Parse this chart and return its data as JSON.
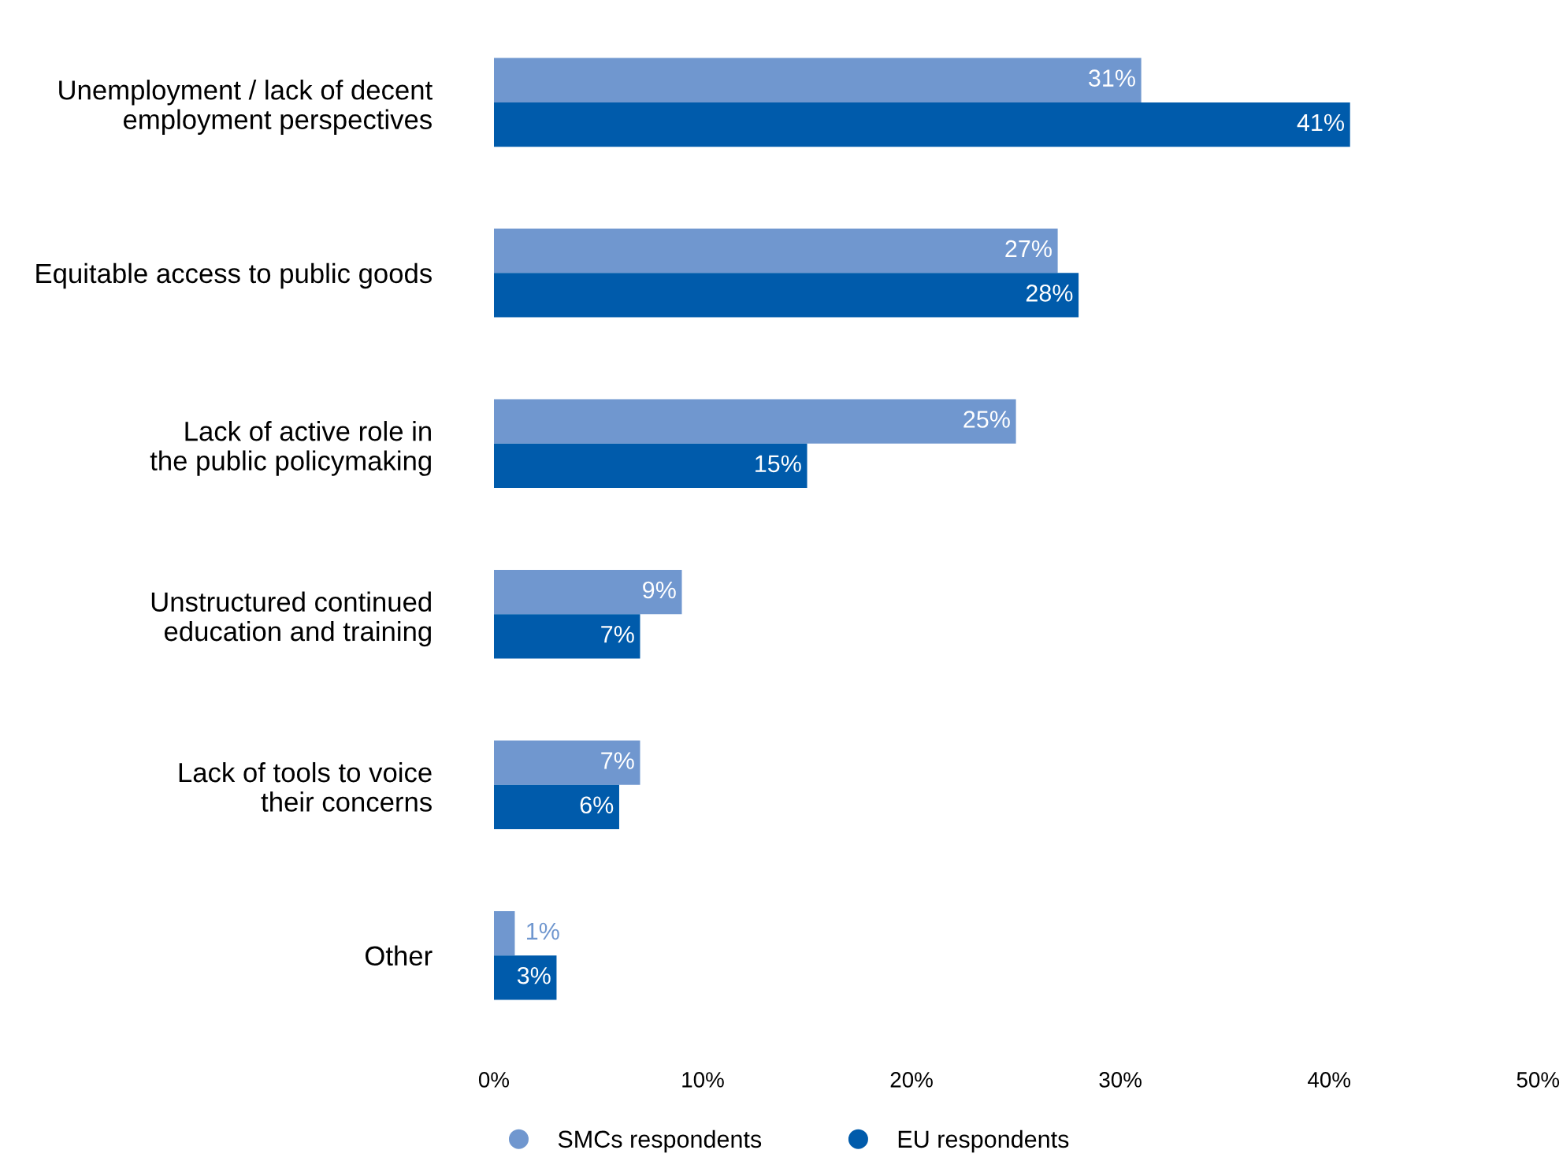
{
  "chart_data": {
    "type": "bar",
    "orientation": "horizontal",
    "categories": [
      "Unemployment / lack of decent\nemployment perspectives",
      "Equitable access to public goods",
      "Lack of active role in\nthe public policymaking",
      "Unstructured continued\neducation and training",
      "Lack of tools to voice\ntheir concerns",
      "Other"
    ],
    "series": [
      {
        "name": "SMCs respondents",
        "color": "#7097cf",
        "values": [
          31,
          27,
          25,
          9,
          7,
          1
        ],
        "value_labels": [
          "31%",
          "27%",
          "25%",
          "9%",
          "7%",
          "1%"
        ]
      },
      {
        "name": "EU respondents",
        "color": "#005bab",
        "values": [
          41,
          28,
          15,
          7,
          6,
          3
        ],
        "value_labels": [
          "41%",
          "28%",
          "15%",
          "7%",
          "6%",
          "3%"
        ]
      }
    ],
    "xlim": [
      0,
      50
    ],
    "xticks": [
      {
        "value": 0,
        "label": "0%"
      },
      {
        "value": 10,
        "label": "10%"
      },
      {
        "value": 20,
        "label": "20%"
      },
      {
        "value": 30,
        "label": "30%"
      },
      {
        "value": 40,
        "label": "40%"
      },
      {
        "value": 50,
        "label": "50%"
      }
    ],
    "legend": "bottom left",
    "grid": false,
    "marker": "circle"
  }
}
